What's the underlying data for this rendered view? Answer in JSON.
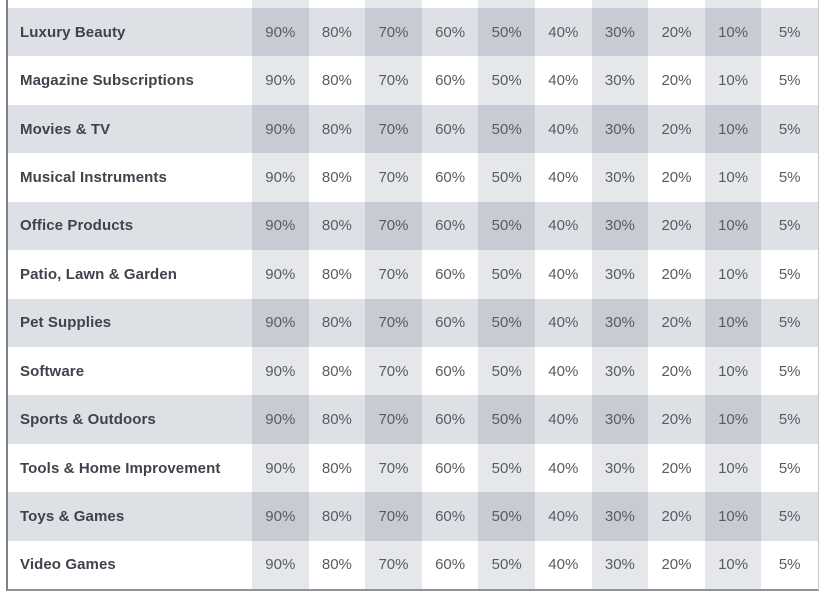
{
  "table": {
    "description": "Referral fee percentage grid by product category",
    "value_columns": [
      "90%",
      "80%",
      "70%",
      "60%",
      "50%",
      "40%",
      "30%",
      "20%",
      "10%",
      "5%"
    ],
    "shaded_value_columns": [
      "90%",
      "70%",
      "50%",
      "30%",
      "10%"
    ],
    "rows": [
      {
        "category": "Luxury Beauty",
        "values": [
          "90%",
          "80%",
          "70%",
          "60%",
          "50%",
          "40%",
          "30%",
          "20%",
          "10%",
          "5%"
        ]
      },
      {
        "category": "Magazine Subscriptions",
        "values": [
          "90%",
          "80%",
          "70%",
          "60%",
          "50%",
          "40%",
          "30%",
          "20%",
          "10%",
          "5%"
        ]
      },
      {
        "category": "Movies & TV",
        "values": [
          "90%",
          "80%",
          "70%",
          "60%",
          "50%",
          "40%",
          "30%",
          "20%",
          "10%",
          "5%"
        ]
      },
      {
        "category": "Musical Instruments",
        "values": [
          "90%",
          "80%",
          "70%",
          "60%",
          "50%",
          "40%",
          "30%",
          "20%",
          "10%",
          "5%"
        ]
      },
      {
        "category": "Office Products",
        "values": [
          "90%",
          "80%",
          "70%",
          "60%",
          "50%",
          "40%",
          "30%",
          "20%",
          "10%",
          "5%"
        ]
      },
      {
        "category": "Patio, Lawn & Garden",
        "values": [
          "90%",
          "80%",
          "70%",
          "60%",
          "50%",
          "40%",
          "30%",
          "20%",
          "10%",
          "5%"
        ]
      },
      {
        "category": "Pet Supplies",
        "values": [
          "90%",
          "80%",
          "70%",
          "60%",
          "50%",
          "40%",
          "30%",
          "20%",
          "10%",
          "5%"
        ]
      },
      {
        "category": "Software",
        "values": [
          "90%",
          "80%",
          "70%",
          "60%",
          "50%",
          "40%",
          "30%",
          "20%",
          "10%",
          "5%"
        ]
      },
      {
        "category": "Sports & Outdoors",
        "values": [
          "90%",
          "80%",
          "70%",
          "60%",
          "50%",
          "40%",
          "30%",
          "20%",
          "10%",
          "5%"
        ]
      },
      {
        "category": "Tools & Home Improvement",
        "values": [
          "90%",
          "80%",
          "70%",
          "60%",
          "50%",
          "40%",
          "30%",
          "20%",
          "10%",
          "5%"
        ]
      },
      {
        "category": "Toys & Games",
        "values": [
          "90%",
          "80%",
          "70%",
          "60%",
          "50%",
          "40%",
          "30%",
          "20%",
          "10%",
          "5%"
        ]
      },
      {
        "category": "Video Games",
        "values": [
          "90%",
          "80%",
          "70%",
          "60%",
          "50%",
          "40%",
          "30%",
          "20%",
          "10%",
          "5%"
        ]
      }
    ]
  },
  "colors": {
    "row_gray_bg": "#dde1e6",
    "row_gray_shaded_bg": "#c7ccd4",
    "row_white_bg": "#ffffff",
    "row_white_shaded_bg": "#e5e7ea",
    "category_text": "#3e434c",
    "value_text": "#575c64",
    "border_left": "#7b8189",
    "border_bottom": "#8e949c",
    "border_right": "#c2c6cc"
  }
}
